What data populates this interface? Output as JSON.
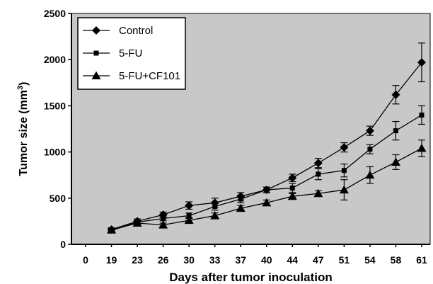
{
  "chart_data": {
    "type": "line",
    "title": "",
    "xlabel": "Days after tumor inoculation",
    "ylabel": "Tumor size (mm³)",
    "ylabel_parts": {
      "main": "Tumor size (mm",
      "sup": "3",
      "end": ")"
    },
    "ylim": [
      0,
      2500
    ],
    "yticks": [
      0,
      500,
      1000,
      1500,
      2000,
      2500
    ],
    "categories": [
      "0",
      "19",
      "23",
      "26",
      "30",
      "33",
      "37",
      "40",
      "44",
      "47",
      "51",
      "54",
      "58",
      "61"
    ],
    "grid": false,
    "legend_position": "top-left",
    "background_color": "#c8c8c8",
    "series": [
      {
        "name": "Control",
        "marker": "diamond",
        "values": [
          null,
          160,
          250,
          320,
          420,
          450,
          520,
          590,
          720,
          880,
          1050,
          1230,
          1620,
          1970
        ],
        "errors": [
          null,
          20,
          25,
          30,
          40,
          50,
          40,
          30,
          40,
          50,
          50,
          50,
          100,
          210
        ]
      },
      {
        "name": "5-FU",
        "marker": "square",
        "values": [
          null,
          150,
          240,
          280,
          310,
          410,
          490,
          590,
          610,
          760,
          800,
          1030,
          1230,
          1400
        ],
        "errors": [
          null,
          15,
          20,
          25,
          30,
          40,
          40,
          30,
          50,
          60,
          70,
          50,
          100,
          100
        ]
      },
      {
        "name": "5-FU+CF101",
        "marker": "triangle",
        "values": [
          null,
          155,
          230,
          210,
          260,
          310,
          390,
          450,
          520,
          550,
          590,
          750,
          890,
          1040
        ],
        "errors": [
          null,
          15,
          20,
          20,
          30,
          30,
          30,
          30,
          30,
          30,
          110,
          90,
          80,
          90
        ]
      }
    ]
  }
}
